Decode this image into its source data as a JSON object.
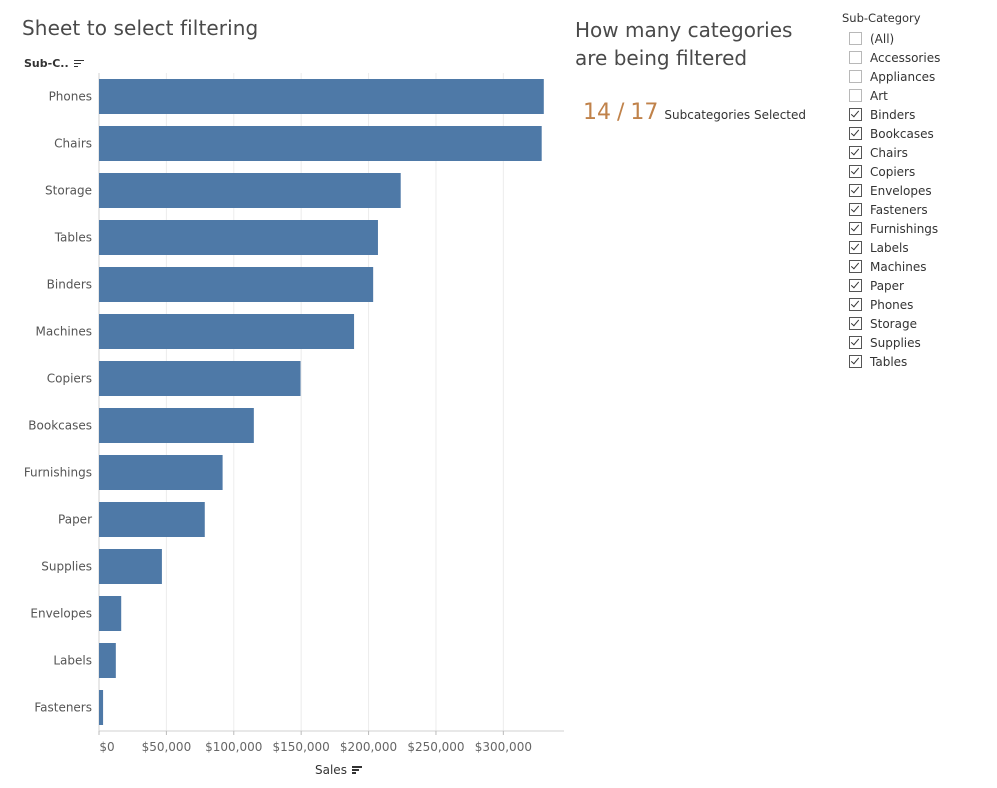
{
  "sheet": {
    "title": "Sheet to select filtering",
    "column_header": "Sub-C..",
    "x_axis_title": "Sales"
  },
  "kpi": {
    "title": "How many categories are being filtered",
    "selected": "14",
    "separator": "/",
    "total": "17",
    "label": "Subcategories Selected",
    "color": "#c0824a"
  },
  "filter": {
    "title": "Sub-Category",
    "items": [
      {
        "label": "(All)",
        "checked": false
      },
      {
        "label": "Accessories",
        "checked": false
      },
      {
        "label": "Appliances",
        "checked": false
      },
      {
        "label": "Art",
        "checked": false
      },
      {
        "label": "Binders",
        "checked": true
      },
      {
        "label": "Bookcases",
        "checked": true
      },
      {
        "label": "Chairs",
        "checked": true
      },
      {
        "label": "Copiers",
        "checked": true
      },
      {
        "label": "Envelopes",
        "checked": true
      },
      {
        "label": "Fasteners",
        "checked": true
      },
      {
        "label": "Furnishings",
        "checked": true
      },
      {
        "label": "Labels",
        "checked": true
      },
      {
        "label": "Machines",
        "checked": true
      },
      {
        "label": "Paper",
        "checked": true
      },
      {
        "label": "Phones",
        "checked": true
      },
      {
        "label": "Storage",
        "checked": true
      },
      {
        "label": "Supplies",
        "checked": true
      },
      {
        "label": "Tables",
        "checked": true
      }
    ]
  },
  "chart_data": {
    "type": "bar",
    "orientation": "horizontal",
    "categories": [
      "Phones",
      "Chairs",
      "Storage",
      "Tables",
      "Binders",
      "Machines",
      "Copiers",
      "Bookcases",
      "Furnishings",
      "Paper",
      "Supplies",
      "Envelopes",
      "Labels",
      "Fasteners"
    ],
    "values": [
      330007,
      328449,
      223844,
      206966,
      203413,
      189239,
      149528,
      114880,
      91705,
      78479,
      46674,
      16476,
      12486,
      3024
    ],
    "xlabel": "Sales",
    "ylabel": "Sub-C..",
    "xlim": [
      0,
      345000
    ],
    "xticks": [
      0,
      50000,
      100000,
      150000,
      200000,
      250000,
      300000
    ],
    "xtick_labels": [
      "$0",
      "$50,000",
      "$100,000",
      "$150,000",
      "$200,000",
      "$250,000",
      "$300,000"
    ],
    "grid": true,
    "bar_color": "#4e79a7"
  }
}
